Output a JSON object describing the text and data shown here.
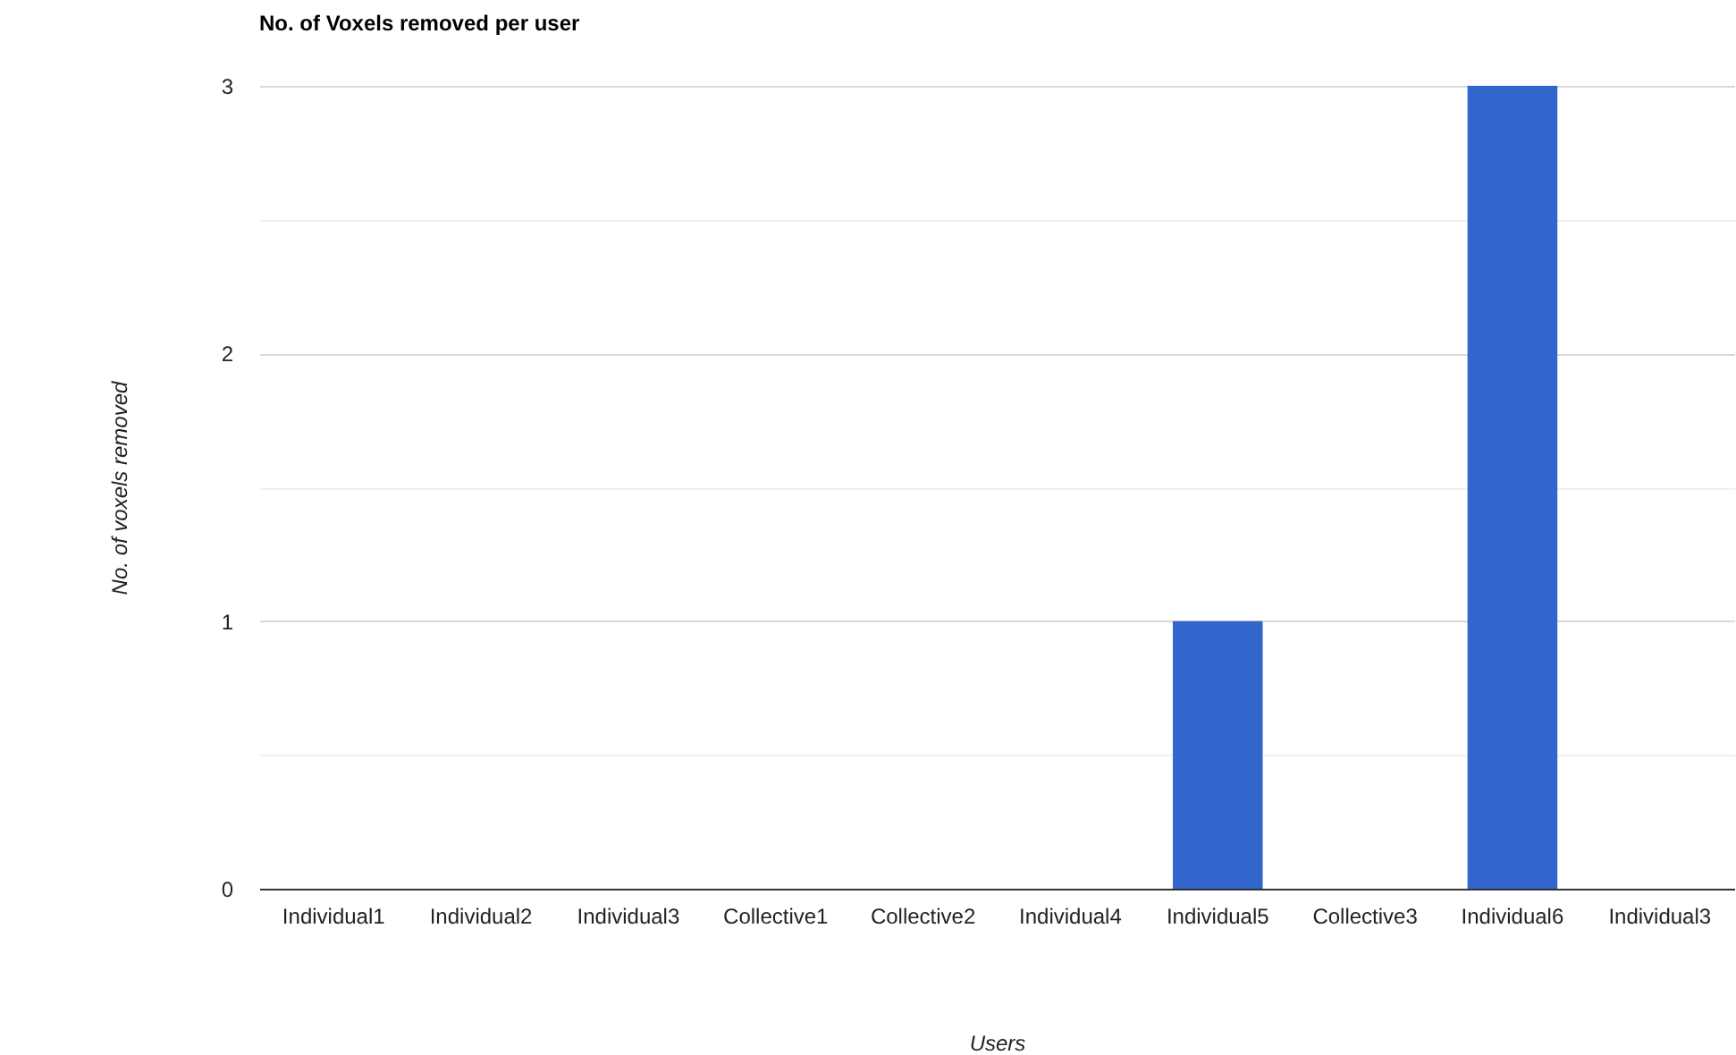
{
  "chart_data": {
    "type": "bar",
    "title": "No. of Voxels removed per user",
    "xlabel": "Users",
    "ylabel": "No. of voxels removed",
    "categories": [
      "Individual1",
      "Individual2",
      "Individual3",
      "Collective1",
      "Collective2",
      "Individual4",
      "Individual5",
      "Collective3",
      "Individual6",
      "Individual3"
    ],
    "series": [
      {
        "color": "#3366cc",
        "values": [
          0,
          0,
          0,
          0,
          0,
          0,
          1,
          0,
          3,
          0
        ]
      }
    ],
    "ylim": [
      0,
      3
    ],
    "yticks": [
      0,
      {
        "value": 0.5,
        "label": null
      },
      1,
      {
        "value": 1.5,
        "label": null
      },
      2,
      {
        "value": 2.5,
        "label": null
      },
      3
    ],
    "grid": "y",
    "legend": false
  }
}
